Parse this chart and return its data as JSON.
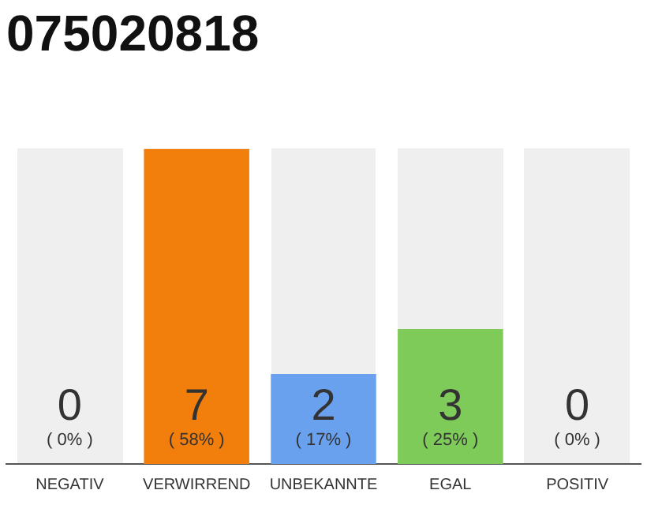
{
  "chart_data": {
    "type": "bar",
    "title": "075020818",
    "categories": [
      "NEGATIV",
      "VERWIRREND",
      "UNBEKANNTE",
      "EGAL",
      "POSITIV"
    ],
    "values": [
      0,
      7,
      2,
      3,
      0
    ],
    "colors": [
      "#efefef",
      "#f27e0b",
      "#6aa1ef",
      "#7ecb5a",
      "#efefef"
    ],
    "ylim": [
      0,
      7
    ],
    "data_labels": true,
    "grid": false,
    "legend": false,
    "annotations": [
      "( 0% )",
      "( 58% )",
      "( 17% )",
      "( 25% )",
      "( 0% )"
    ]
  }
}
